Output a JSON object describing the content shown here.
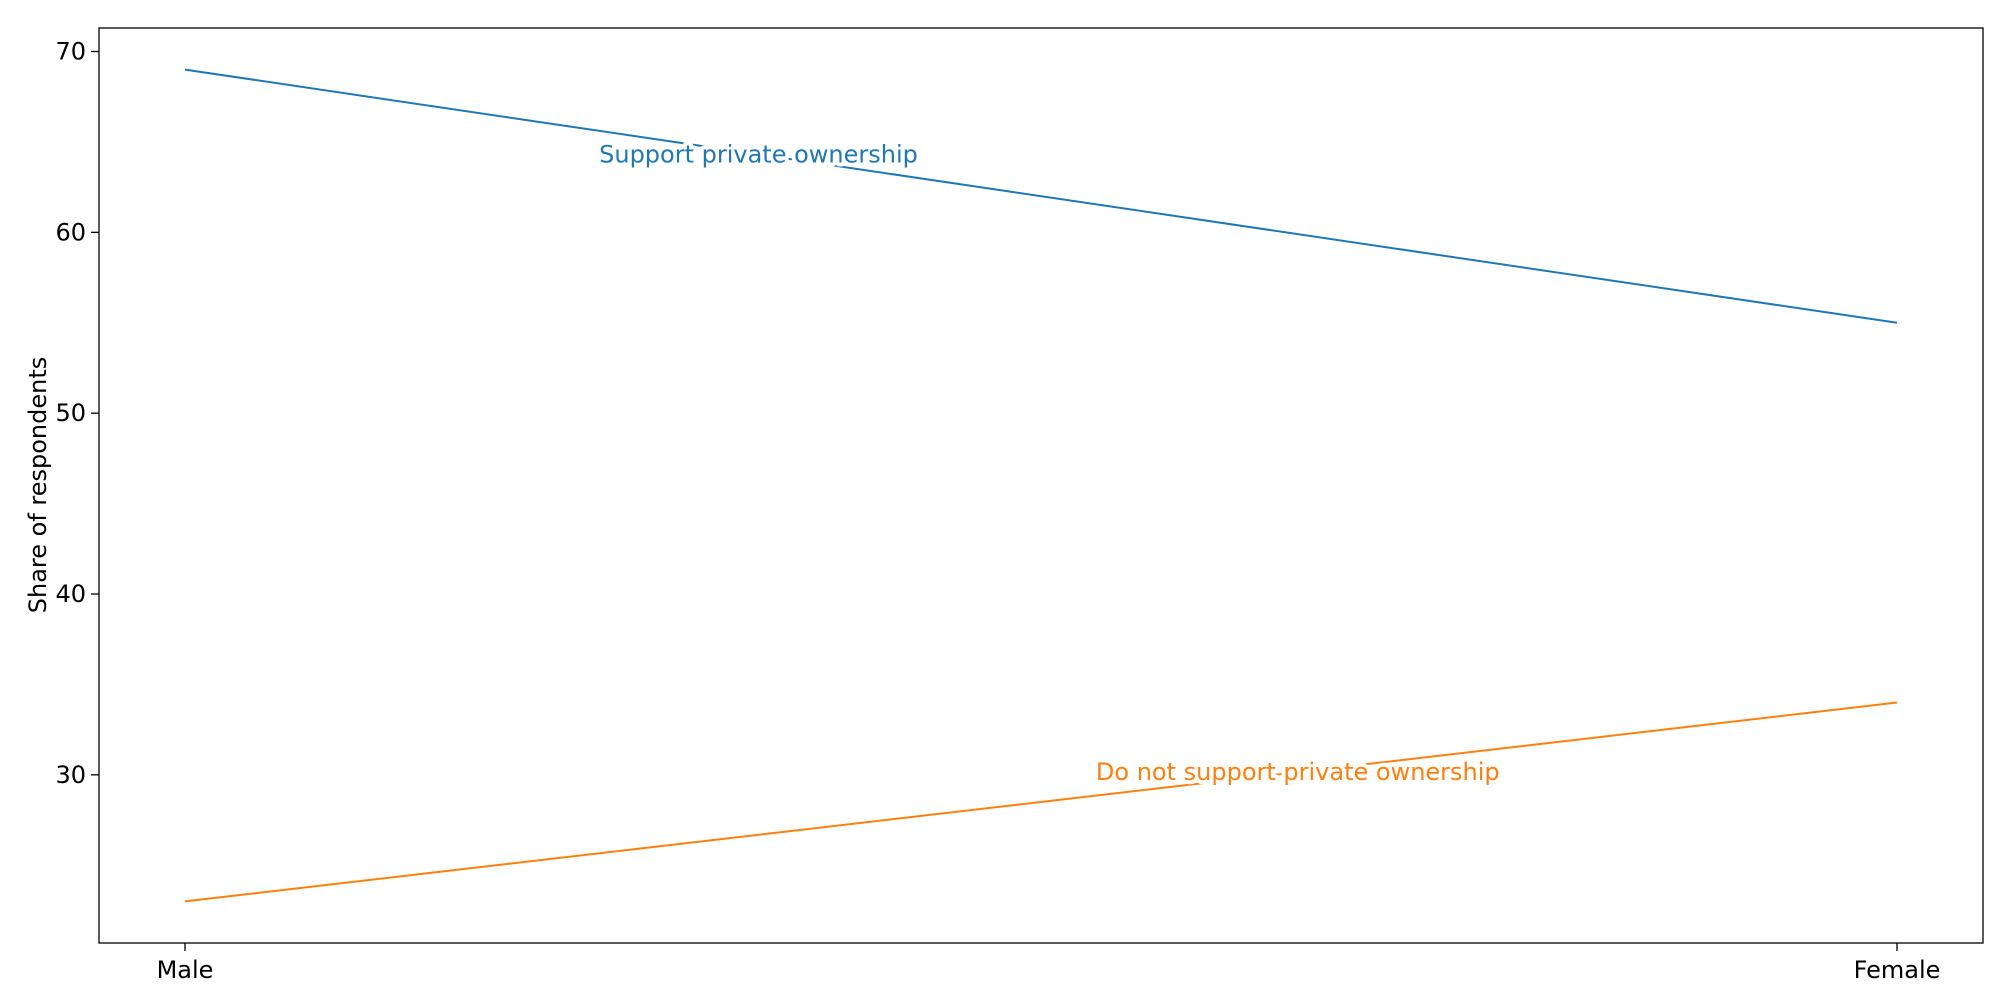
{
  "chart_data": {
    "type": "line",
    "categories": [
      "Male",
      "Female"
    ],
    "series": [
      {
        "name": "Support private ownership",
        "values": [
          69,
          55
        ],
        "color": "#1f77b4"
      },
      {
        "name": "Do not support private ownership",
        "values": [
          23,
          34
        ],
        "color": "#ff7f0e"
      }
    ],
    "xlabel": "",
    "ylabel": "Share of respondents",
    "ylim": [
      20.7,
      71.3
    ],
    "yticks": [
      30,
      40,
      50,
      60,
      70
    ],
    "grid": false,
    "legend": "none (inline labels on lines)"
  }
}
